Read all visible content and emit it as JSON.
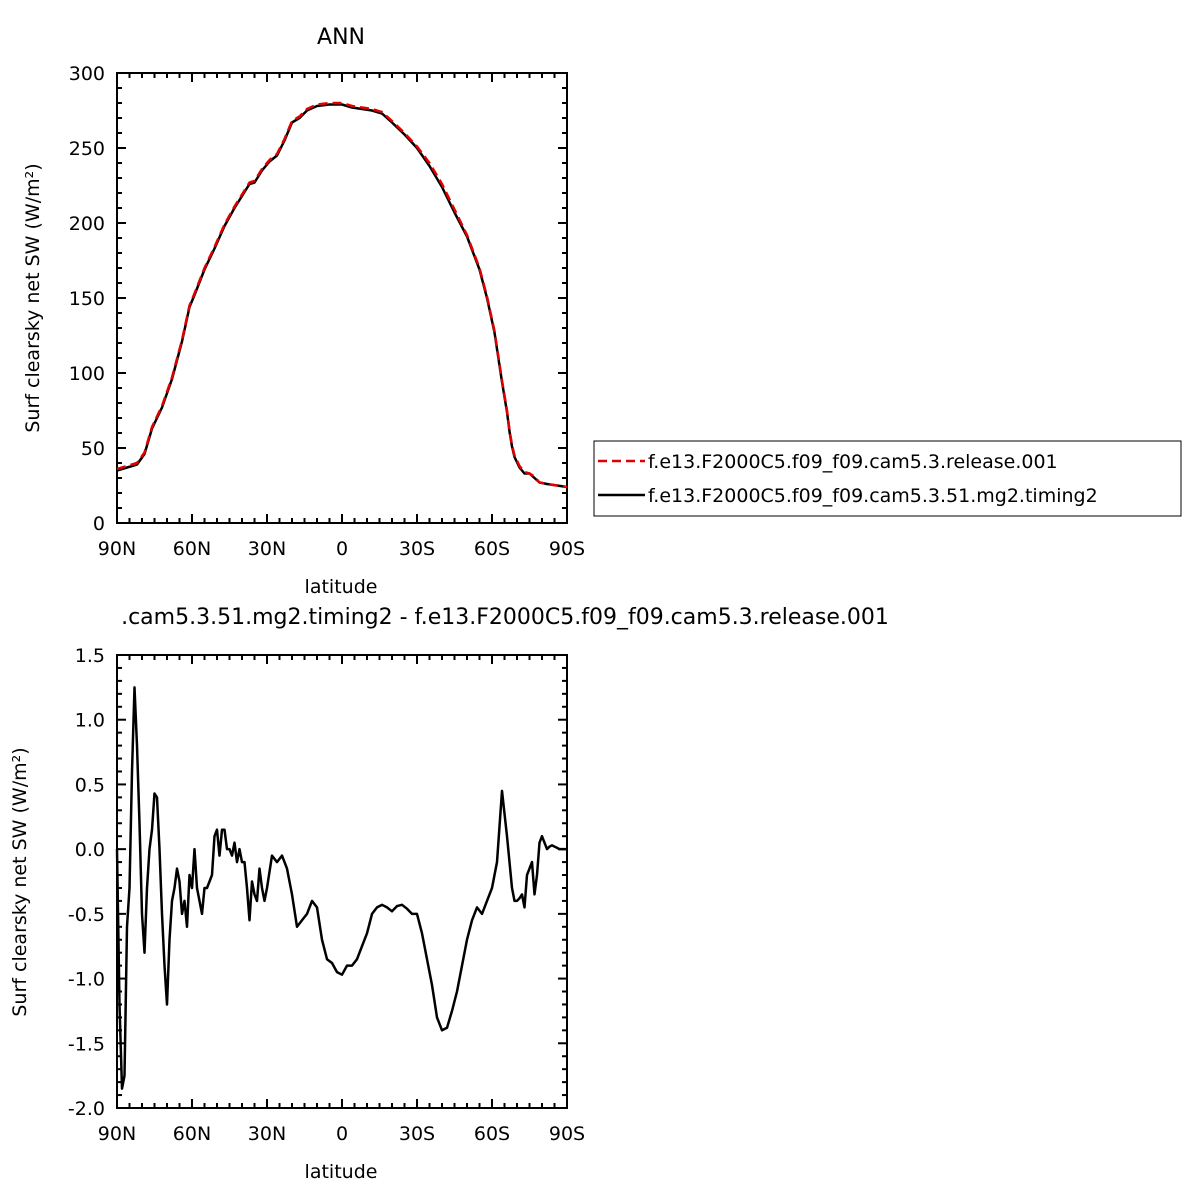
{
  "colors": {
    "model_a": "#e00000",
    "model_b": "#000000"
  },
  "chart_data": [
    {
      "type": "line",
      "title": "ANN",
      "xlabel": "latitude",
      "ylabel": "Surf clearsky net SW (W/m²)",
      "xlim": [
        -90,
        90
      ],
      "ylim": [
        0,
        300
      ],
      "xticks": [
        -90,
        -60,
        -30,
        0,
        30,
        60,
        90
      ],
      "xtick_labels": [
        "90N",
        "60N",
        "30N",
        "0",
        "30S",
        "60S",
        "90S"
      ],
      "yticks": [
        0,
        50,
        100,
        150,
        200,
        250,
        300
      ],
      "ytick_labels": [
        "0",
        "50",
        "100",
        "150",
        "200",
        "250",
        "300"
      ],
      "legend": {
        "position": "right",
        "entries": [
          "f.e13.F2000C5.f09_f09.cam5.3.release.001",
          "f.e13.F2000C5.f09_f09.cam5.3.51.mg2.timing2"
        ]
      },
      "x": [
        -90,
        -86,
        -82,
        -79,
        -76,
        -72,
        -68,
        -64,
        -61,
        -59,
        -55,
        -51,
        -47,
        -43,
        -40,
        -37,
        -35,
        -32,
        -29,
        -26,
        -23,
        -20,
        -17,
        -14,
        -10,
        -5,
        0,
        4,
        8,
        12,
        16,
        20,
        25,
        30,
        35,
        40,
        45,
        50,
        55,
        58,
        61,
        64,
        66,
        67,
        68,
        69,
        71,
        73,
        75,
        77,
        79,
        82,
        86,
        90
      ],
      "series": [
        {
          "name": "f.e13.F2000C5.f09_f09.cam5.3.release.001",
          "style": "dashed",
          "color_key": "model_a",
          "values": [
            36,
            38,
            40,
            47,
            64,
            78,
            97,
            122,
            145,
            153,
            170,
            184,
            199,
            211,
            219,
            227,
            228,
            236,
            242,
            246,
            256,
            268,
            271,
            276,
            279,
            280,
            280,
            278,
            277,
            276,
            274,
            268,
            260,
            251,
            240,
            226,
            209,
            192,
            170,
            151,
            128,
            95,
            75,
            62,
            52,
            45,
            38,
            34,
            33,
            31,
            27,
            26,
            25,
            24
          ]
        },
        {
          "name": "f.e13.F2000C5.f09_f09.cam5.3.51.mg2.timing2",
          "style": "solid",
          "color_key": "model_b",
          "values": [
            35,
            37,
            39,
            46,
            63,
            77,
            96,
            121,
            144,
            152,
            169,
            183,
            198,
            210,
            218,
            226,
            227,
            235,
            241,
            245,
            255,
            267,
            270,
            275,
            278,
            279,
            279,
            277,
            276,
            275,
            273,
            267,
            259,
            250,
            238,
            224,
            207,
            191,
            169,
            150,
            127,
            94,
            74,
            61,
            51,
            44,
            37,
            33,
            33,
            30,
            27,
            26,
            25,
            24
          ]
        }
      ]
    },
    {
      "type": "line",
      "title": ".cam5.3.51.mg2.timing2 - f.e13.F2000C5.f09_f09.cam5.3.release.001",
      "xlabel": "latitude",
      "ylabel": "Surf clearsky net SW (W/m²)",
      "xlim": [
        -90,
        90
      ],
      "ylim": [
        -2.0,
        1.5
      ],
      "xticks": [
        -90,
        -60,
        -30,
        0,
        30,
        60,
        90
      ],
      "xtick_labels": [
        "90N",
        "60N",
        "30N",
        "0",
        "30S",
        "60S",
        "90S"
      ],
      "yticks": [
        -2.0,
        -1.5,
        -1.0,
        -0.5,
        0.0,
        0.5,
        1.0,
        1.5
      ],
      "ytick_labels": [
        "-2.0",
        "-1.5",
        "-1.0",
        "-0.5",
        "0.0",
        "0.5",
        "1.0",
        "1.5"
      ],
      "x": [
        -90,
        -89,
        -88,
        -87,
        -86,
        -85,
        -84,
        -83,
        -82,
        -81,
        -80,
        -79,
        -78,
        -77,
        -76,
        -75,
        -74,
        -73,
        -72,
        -71,
        -70,
        -69,
        -68,
        -67,
        -66,
        -65,
        -64,
        -63,
        -62,
        -61,
        -60,
        -59,
        -58,
        -57,
        -56,
        -55,
        -54,
        -53,
        -52,
        -51,
        -50,
        -49,
        -48,
        -47,
        -46,
        -45,
        -44,
        -43,
        -42,
        -41,
        -40,
        -39,
        -38,
        -37,
        -36,
        -35,
        -34,
        -33,
        -32,
        -31,
        -30,
        -28,
        -26,
        -24,
        -22,
        -20,
        -18,
        -16,
        -14,
        -12,
        -10,
        -8,
        -6,
        -4,
        -2,
        0,
        2,
        4,
        6,
        8,
        10,
        12,
        14,
        16,
        18,
        20,
        22,
        24,
        26,
        28,
        30,
        32,
        34,
        36,
        38,
        40,
        42,
        44,
        46,
        48,
        50,
        52,
        54,
        56,
        58,
        60,
        62,
        64,
        66,
        68,
        69,
        70,
        71,
        72,
        73,
        74,
        75,
        76,
        77,
        78,
        79,
        80,
        81,
        82,
        83,
        84,
        85,
        86,
        87,
        88,
        89,
        90
      ],
      "series": [
        {
          "name": "",
          "style": "solid",
          "color_key": "model_b",
          "values": [
            0.0,
            -1.2,
            -1.85,
            -1.75,
            -0.6,
            -0.3,
            0.6,
            1.25,
            0.8,
            0.2,
            -0.5,
            -0.8,
            -0.3,
            0.0,
            0.15,
            0.43,
            0.4,
            0.0,
            -0.5,
            -0.9,
            -1.2,
            -0.7,
            -0.4,
            -0.3,
            -0.15,
            -0.25,
            -0.5,
            -0.4,
            -0.6,
            -0.2,
            -0.3,
            0.0,
            -0.3,
            -0.4,
            -0.5,
            -0.3,
            -0.3,
            -0.25,
            -0.2,
            0.1,
            0.15,
            -0.05,
            0.15,
            0.15,
            0.0,
            0.0,
            -0.05,
            0.05,
            -0.1,
            0.0,
            -0.1,
            -0.1,
            -0.3,
            -0.55,
            -0.25,
            -0.35,
            -0.4,
            -0.15,
            -0.3,
            -0.4,
            -0.3,
            -0.05,
            -0.1,
            -0.05,
            -0.15,
            -0.35,
            -0.6,
            -0.55,
            -0.5,
            -0.4,
            -0.45,
            -0.7,
            -0.85,
            -0.88,
            -0.95,
            -0.97,
            -0.9,
            -0.9,
            -0.85,
            -0.75,
            -0.65,
            -0.5,
            -0.45,
            -0.43,
            -0.45,
            -0.48,
            -0.44,
            -0.43,
            -0.46,
            -0.5,
            -0.5,
            -0.65,
            -0.85,
            -1.05,
            -1.3,
            -1.4,
            -1.38,
            -1.25,
            -1.1,
            -0.9,
            -0.7,
            -0.55,
            -0.45,
            -0.5,
            -0.4,
            -0.3,
            -0.1,
            0.45,
            0.1,
            -0.3,
            -0.4,
            -0.4,
            -0.38,
            -0.35,
            -0.45,
            -0.2,
            -0.15,
            -0.1,
            -0.35,
            -0.2,
            0.05,
            0.1,
            0.05,
            0.0,
            0.02,
            0.03,
            0.02,
            0.01,
            0.0,
            0.0,
            0.0,
            0.0
          ]
        }
      ]
    }
  ]
}
